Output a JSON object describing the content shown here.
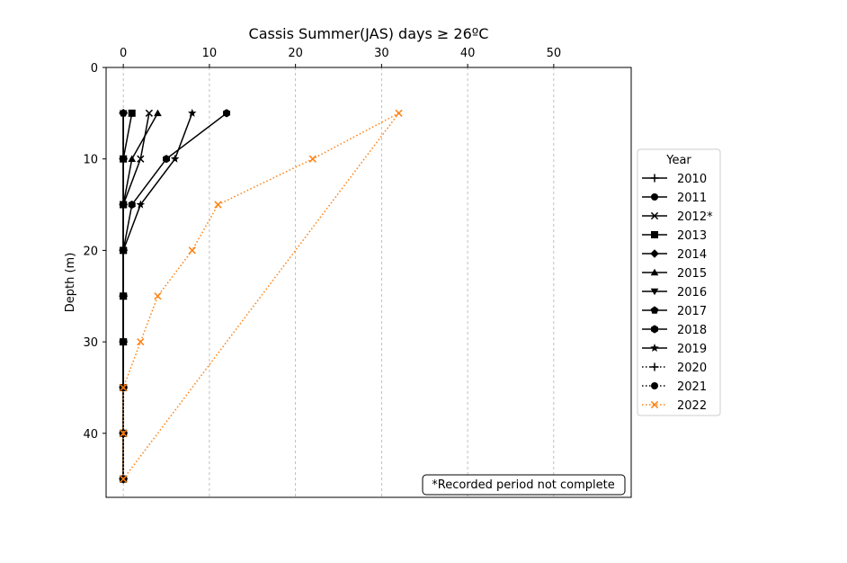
{
  "chart_data": {
    "type": "line",
    "title": "Cassis Summer(JAS) days ≥ 26ºC",
    "xlabel": "",
    "ylabel": "Depth (m)",
    "x_axis_position": "top",
    "y_inverted": true,
    "xlim": [
      -2,
      59
    ],
    "ylim": [
      47,
      0
    ],
    "xticks": [
      0,
      10,
      20,
      30,
      40,
      50
    ],
    "yticks": [
      0,
      10,
      20,
      30,
      40
    ],
    "grid": "vertical-dashed",
    "legend": {
      "title": "Year",
      "placement": "outside-right"
    },
    "annotation": "*Recorded period not complete",
    "series": [
      {
        "name": "2010",
        "marker": "plus",
        "linestyle": "solid",
        "color": "#000000",
        "points": [
          [
            0,
            5
          ],
          [
            0,
            10
          ],
          [
            0,
            15
          ],
          [
            0,
            20
          ],
          [
            0,
            25
          ],
          [
            0,
            30
          ],
          [
            0,
            35
          ],
          [
            0,
            40
          ],
          [
            0,
            45
          ]
        ]
      },
      {
        "name": "2011",
        "marker": "circle",
        "linestyle": "solid",
        "color": "#000000",
        "points": [
          [
            0,
            5
          ],
          [
            0,
            10
          ],
          [
            0,
            15
          ],
          [
            0,
            20
          ],
          [
            0,
            25
          ],
          [
            0,
            30
          ],
          [
            0,
            35
          ],
          [
            0,
            40
          ],
          [
            0,
            45
          ]
        ]
      },
      {
        "name": "2012*",
        "marker": "x",
        "linestyle": "solid",
        "color": "#000000",
        "points": [
          [
            3,
            5
          ],
          [
            2,
            10
          ],
          [
            0,
            15
          ],
          [
            0,
            20
          ],
          [
            0,
            25
          ],
          [
            0,
            30
          ],
          [
            0,
            35
          ],
          [
            0,
            40
          ],
          [
            0,
            45
          ]
        ]
      },
      {
        "name": "2013",
        "marker": "square",
        "linestyle": "solid",
        "color": "#000000",
        "points": [
          [
            1,
            5
          ],
          [
            0,
            10
          ],
          [
            0,
            15
          ],
          [
            0,
            20
          ],
          [
            0,
            25
          ],
          [
            0,
            30
          ],
          [
            0,
            35
          ],
          [
            0,
            40
          ],
          [
            0,
            45
          ]
        ]
      },
      {
        "name": "2014",
        "marker": "diamond",
        "linestyle": "solid",
        "color": "#000000",
        "points": [
          [
            0,
            5
          ],
          [
            0,
            10
          ],
          [
            0,
            15
          ],
          [
            0,
            20
          ],
          [
            0,
            25
          ],
          [
            0,
            30
          ],
          [
            0,
            35
          ],
          [
            0,
            40
          ],
          [
            0,
            45
          ]
        ]
      },
      {
        "name": "2015",
        "marker": "triangle-up",
        "linestyle": "solid",
        "color": "#000000",
        "points": [
          [
            4,
            5
          ],
          [
            1,
            10
          ],
          [
            0,
            15
          ],
          [
            0,
            20
          ],
          [
            0,
            25
          ],
          [
            0,
            30
          ],
          [
            0,
            35
          ],
          [
            0,
            40
          ],
          [
            0,
            45
          ]
        ]
      },
      {
        "name": "2016",
        "marker": "triangle-down",
        "linestyle": "solid",
        "color": "#000000",
        "points": [
          [
            0,
            5
          ],
          [
            0,
            10
          ],
          [
            0,
            15
          ],
          [
            0,
            20
          ],
          [
            0,
            25
          ],
          [
            0,
            30
          ],
          [
            0,
            35
          ],
          [
            0,
            40
          ],
          [
            0,
            45
          ]
        ]
      },
      {
        "name": "2017",
        "marker": "pentagon",
        "linestyle": "solid",
        "color": "#000000",
        "points": [
          [
            0,
            5
          ],
          [
            0,
            10
          ],
          [
            0,
            15
          ],
          [
            0,
            20
          ],
          [
            0,
            25
          ],
          [
            0,
            30
          ],
          [
            0,
            35
          ],
          [
            0,
            40
          ],
          [
            0,
            45
          ]
        ]
      },
      {
        "name": "2018",
        "marker": "hexagon",
        "linestyle": "solid",
        "color": "#000000",
        "points": [
          [
            12,
            5
          ],
          [
            5,
            10
          ],
          [
            1,
            15
          ],
          [
            0,
            20
          ],
          [
            0,
            25
          ],
          [
            0,
            30
          ],
          [
            0,
            35
          ],
          [
            0,
            40
          ],
          [
            0,
            45
          ]
        ]
      },
      {
        "name": "2019",
        "marker": "star",
        "linestyle": "solid",
        "color": "#000000",
        "points": [
          [
            8,
            5
          ],
          [
            6,
            10
          ],
          [
            2,
            15
          ],
          [
            0,
            20
          ],
          [
            0,
            25
          ],
          [
            0,
            30
          ],
          [
            0,
            35
          ],
          [
            0,
            40
          ],
          [
            0,
            45
          ]
        ]
      },
      {
        "name": "2020",
        "marker": "plus",
        "linestyle": "dotted",
        "color": "#000000",
        "points": [
          [
            0,
            35
          ],
          [
            0,
            40
          ],
          [
            0,
            45
          ]
        ]
      },
      {
        "name": "2021",
        "marker": "circle",
        "linestyle": "dotted",
        "color": "#000000",
        "points": [
          [
            0,
            35
          ],
          [
            0,
            40
          ],
          [
            0,
            45
          ]
        ]
      },
      {
        "name": "2022",
        "marker": "x",
        "linestyle": "dotted",
        "color": "#ff7f0e",
        "points": [
          [
            32,
            5
          ],
          [
            22,
            10
          ],
          [
            11,
            15
          ],
          [
            8,
            20
          ],
          [
            4,
            25
          ],
          [
            2,
            30
          ],
          [
            0,
            35
          ],
          [
            0,
            40
          ],
          [
            0,
            45
          ]
        ]
      },
      {
        "name": "",
        "marker": "none",
        "linestyle": "dotted",
        "color": "#ff7f0e",
        "legend": false,
        "points": [
          [
            32,
            5
          ],
          [
            0,
            45
          ]
        ]
      }
    ]
  }
}
